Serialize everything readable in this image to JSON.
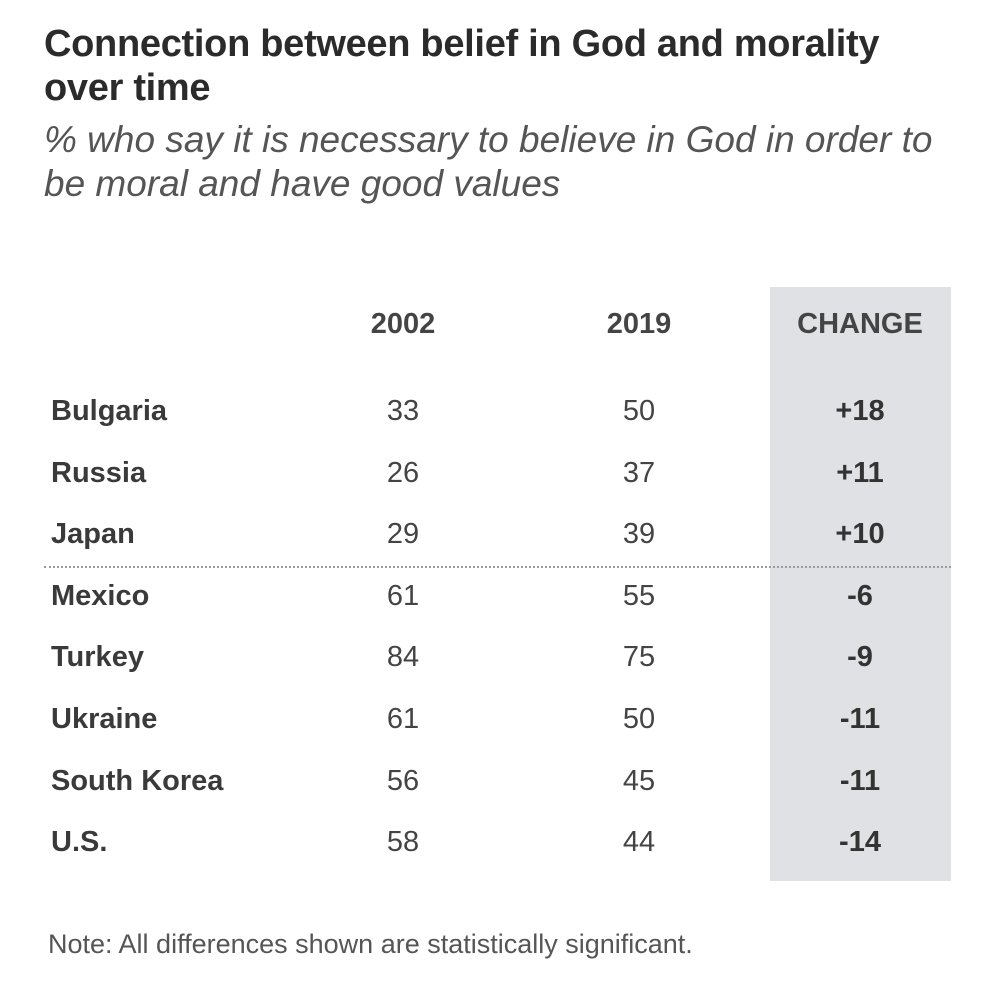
{
  "title": "Connection between belief in God and morality over time",
  "subtitle": "% who say it is necessary to believe in God in order to be moral and have good values",
  "note": "Note: All differences shown are statistically significant.",
  "chart_data": {
    "type": "table",
    "title": "Connection between belief in God and morality over time",
    "subtitle": "% who say it is necessary to believe in God in order to be moral and have good values",
    "columns": [
      "2002",
      "2019",
      "CHANGE"
    ],
    "rows": [
      {
        "country": "Bulgaria",
        "y2002": "33",
        "y2019": "50",
        "change": "+18"
      },
      {
        "country": "Russia",
        "y2002": "26",
        "y2019": "37",
        "change": "+11"
      },
      {
        "country": "Japan",
        "y2002": "29",
        "y2019": "39",
        "change": "+10"
      },
      {
        "country": "Mexico",
        "y2002": "61",
        "y2019": "55",
        "change": "-6"
      },
      {
        "country": "Turkey",
        "y2002": "84",
        "y2019": "75",
        "change": "-9"
      },
      {
        "country": "Ukraine",
        "y2002": "61",
        "y2019": "50",
        "change": "-11"
      },
      {
        "country": "South Korea",
        "y2002": "56",
        "y2019": "45",
        "change": "-11"
      },
      {
        "country": "U.S.",
        "y2002": "58",
        "y2019": "44",
        "change": "-14"
      }
    ],
    "highlight_color": "#dfe1e5"
  }
}
